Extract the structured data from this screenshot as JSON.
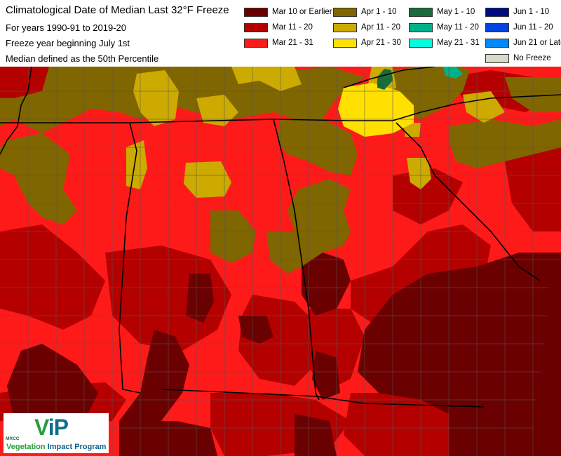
{
  "title": {
    "line1": "Climatological Date of Median Last 32°F Freeze",
    "line2": "For years 1990-91 to 2019-20",
    "line3": "Freeze year beginning July 1st",
    "line4": "Median defined as the 50th Percentile"
  },
  "legend": [
    {
      "label": "Mar 10 or Earlier",
      "color": "#6b0000"
    },
    {
      "label": "Apr 1 - 10",
      "color": "#806600"
    },
    {
      "label": "May 1 - 10",
      "color": "#1b6b3a"
    },
    {
      "label": "Jun 1 - 10",
      "color": "#000c80"
    },
    {
      "label": "Mar 11 - 20",
      "color": "#b50000"
    },
    {
      "label": "Apr 11 - 20",
      "color": "#ccaa00"
    },
    {
      "label": "May 11 - 20",
      "color": "#00b08a"
    },
    {
      "label": "Jun 11 - 20",
      "color": "#0044dd"
    },
    {
      "label": "Mar 21 - 31",
      "color": "#ff1a1a"
    },
    {
      "label": "Apr 21 - 30",
      "color": "#ffe000"
    },
    {
      "label": "May 21 - 31",
      "color": "#00ffdd"
    },
    {
      "label": "Jun 21 or Later",
      "color": "#0088ff"
    },
    {
      "label": "No Freeze",
      "color": "#d9d9c8"
    }
  ],
  "logo": {
    "org": "MRCC",
    "mark_v": "V",
    "mark_ip": "iP",
    "name_v": "Vegetation",
    "name_rest": " Impact Program"
  },
  "colors": {
    "state_border": "#000000",
    "county_border": "#555555"
  }
}
